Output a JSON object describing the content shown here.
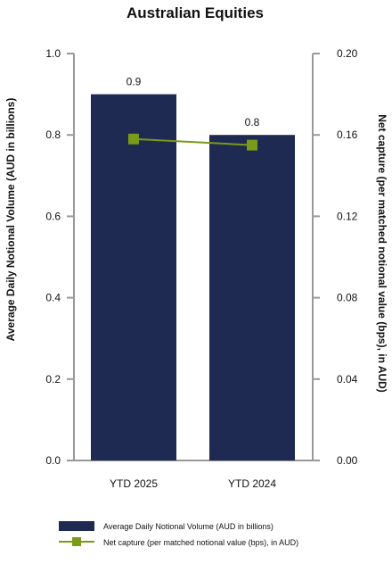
{
  "chart_data": {
    "type": "bar",
    "title": "Australian Equities",
    "categories": [
      "YTD 2025",
      "YTD 2024"
    ],
    "series": [
      {
        "name": "Average Daily Notional Volume (AUD in billions)",
        "kind": "bar",
        "axis": "left",
        "values": [
          0.9,
          0.8
        ],
        "data_labels": [
          "0.9",
          "0.8"
        ]
      },
      {
        "name": "Net capture (per matched notional value (bps), in AUD)",
        "kind": "line",
        "axis": "right",
        "values": [
          0.158,
          0.155
        ]
      }
    ],
    "y_left": {
      "label": "Average Daily Notional Volume (AUD in billions)",
      "ylim": [
        0,
        1.0
      ],
      "ticks": [
        "0.0",
        "0.2",
        "0.4",
        "0.6",
        "0.8",
        "1.0"
      ]
    },
    "y_right": {
      "label": "Net capture (per matched notional value (bps), in AUD)",
      "ylim": [
        0,
        0.2
      ],
      "ticks": [
        "0.00",
        "0.04",
        "0.08",
        "0.12",
        "0.16",
        "0.20"
      ]
    },
    "grid": false,
    "legend_position": "bottom",
    "colors": {
      "bar": "#1f2a52",
      "line": "#7a9a1a",
      "axis": "#999999"
    }
  }
}
